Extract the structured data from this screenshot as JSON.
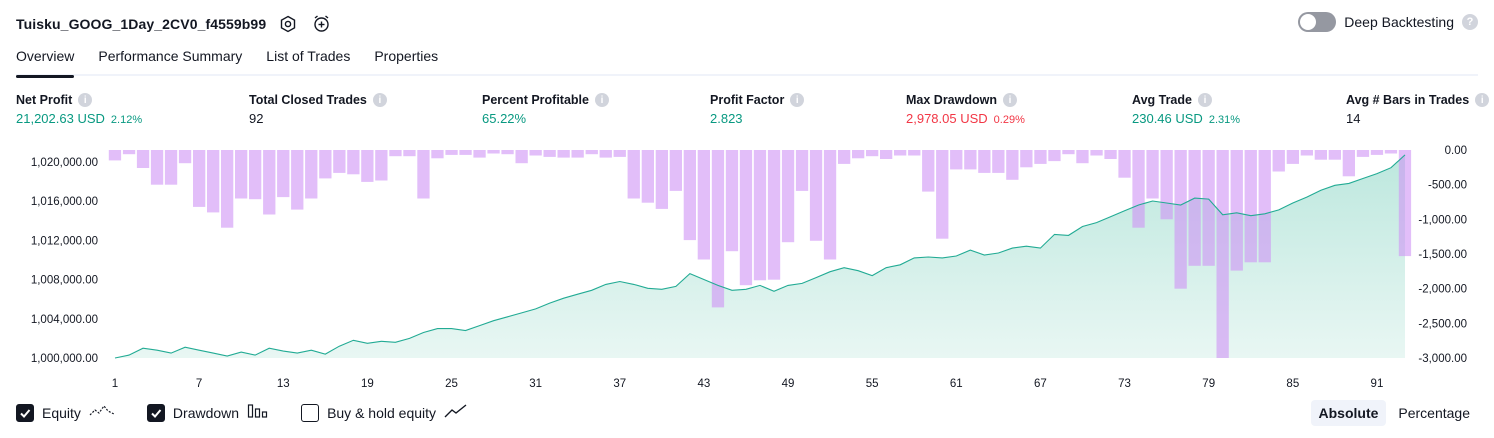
{
  "header": {
    "strategy_name": "Tuisku_GOOG_1Day_2CV0_f4559b99",
    "icons": [
      "settings-icon",
      "add-alert-icon"
    ],
    "deep_backtesting_label": "Deep Backtesting",
    "deep_backtesting_help": "?"
  },
  "tabs": [
    {
      "label": "Overview",
      "active": true
    },
    {
      "label": "Performance Summary",
      "active": false
    },
    {
      "label": "List of Trades",
      "active": false
    },
    {
      "label": "Properties",
      "active": false
    }
  ],
  "metrics": {
    "net_profit": {
      "label": "Net Profit",
      "value": "21,202.63 USD",
      "pct": "2.12%"
    },
    "total_closed_trades": {
      "label": "Total Closed Trades",
      "value": "92"
    },
    "percent_profitable": {
      "label": "Percent Profitable",
      "value": "65.22%"
    },
    "profit_factor": {
      "label": "Profit Factor",
      "value": "2.823"
    },
    "max_drawdown": {
      "label": "Max Drawdown",
      "value": "2,978.05 USD",
      "pct": "0.29%"
    },
    "avg_trade": {
      "label": "Avg Trade",
      "value": "230.46 USD",
      "pct": "2.31%"
    },
    "avg_bars": {
      "label": "Avg # Bars in Trades",
      "value": "14"
    },
    "info_glyph": "i"
  },
  "legend": {
    "equity": "Equity",
    "drawdown": "Drawdown",
    "buy_hold": "Buy & hold equity"
  },
  "mode": {
    "absolute": "Absolute",
    "percentage": "Percentage"
  },
  "colors": {
    "equity_line": "#22ab94",
    "equity_fill": "#cfeee6",
    "drawdown_bar": "#ce93f5",
    "positive": "#089981",
    "negative": "#f23645"
  },
  "chart_data": {
    "type": "area",
    "x_ticks": [
      "1",
      "7",
      "13",
      "19",
      "25",
      "31",
      "37",
      "43",
      "49",
      "55",
      "61",
      "67",
      "73",
      "79",
      "85",
      "91"
    ],
    "left_axis": {
      "ticks": [
        "1,000,000.00",
        "1,004,000.00",
        "1,008,000.00",
        "1,012,000.00",
        "1,016,000.00",
        "1,020,000.00"
      ],
      "ylim": [
        1000000,
        1021202
      ]
    },
    "right_axis": {
      "ticks": [
        "0.00",
        "-500.00",
        "-1,000.00",
        "-1,500.00",
        "-2,000.00",
        "-2,500.00",
        "-3,000.00"
      ],
      "ylim": [
        0,
        -3000
      ]
    },
    "series": [
      {
        "name": "Equity",
        "type": "area",
        "x": [
          1,
          2,
          3,
          4,
          5,
          6,
          7,
          8,
          9,
          10,
          11,
          12,
          13,
          14,
          15,
          16,
          17,
          18,
          19,
          20,
          21,
          22,
          23,
          24,
          25,
          26,
          27,
          28,
          29,
          30,
          31,
          32,
          33,
          34,
          35,
          36,
          37,
          38,
          39,
          40,
          41,
          42,
          43,
          44,
          45,
          46,
          47,
          48,
          49,
          50,
          51,
          52,
          53,
          54,
          55,
          56,
          57,
          58,
          59,
          60,
          61,
          62,
          63,
          64,
          65,
          66,
          67,
          68,
          69,
          70,
          71,
          72,
          73,
          74,
          75,
          76,
          77,
          78,
          79,
          80,
          81,
          82,
          83,
          84,
          85,
          86,
          87,
          88,
          89,
          90,
          91,
          92,
          93
        ],
        "values": [
          1000000,
          1000300,
          1001000,
          1000800,
          1000500,
          1001100,
          1000800,
          1000500,
          1000200,
          1000600,
          1000300,
          1001000,
          1000700,
          1000500,
          1000800,
          1000400,
          1001200,
          1001800,
          1001500,
          1001700,
          1001600,
          1002000,
          1002600,
          1003000,
          1003000,
          1002800,
          1003300,
          1003800,
          1004200,
          1004600,
          1005000,
          1005600,
          1006100,
          1006500,
          1006900,
          1007500,
          1007800,
          1007500,
          1007100,
          1007000,
          1007300,
          1008600,
          1008000,
          1007400,
          1006900,
          1007000,
          1007400,
          1006800,
          1007400,
          1007600,
          1008200,
          1008800,
          1009200,
          1008900,
          1008400,
          1009200,
          1009500,
          1010200,
          1010300,
          1010200,
          1010400,
          1011000,
          1010500,
          1010700,
          1011200,
          1011400,
          1011200,
          1012600,
          1012500,
          1013400,
          1013800,
          1014400,
          1015000,
          1015600,
          1016000,
          1015800,
          1015600,
          1016300,
          1016200,
          1014600,
          1014800,
          1014500,
          1014700,
          1015100,
          1015800,
          1016400,
          1017100,
          1017600,
          1017800,
          1018300,
          1018800,
          1019400,
          1020700
        ]
      },
      {
        "name": "Drawdown",
        "type": "bar",
        "x": [
          1,
          2,
          3,
          4,
          5,
          6,
          7,
          8,
          9,
          10,
          11,
          12,
          13,
          14,
          15,
          16,
          17,
          18,
          19,
          20,
          21,
          22,
          23,
          24,
          25,
          26,
          27,
          28,
          29,
          30,
          31,
          32,
          33,
          34,
          35,
          36,
          37,
          38,
          39,
          40,
          41,
          42,
          43,
          44,
          45,
          46,
          47,
          48,
          49,
          50,
          51,
          52,
          53,
          54,
          55,
          56,
          57,
          58,
          59,
          60,
          61,
          62,
          63,
          64,
          65,
          66,
          67,
          68,
          69,
          70,
          71,
          72,
          73,
          74,
          75,
          76,
          77,
          78,
          79,
          80,
          81,
          82,
          83,
          84,
          85,
          86,
          87,
          88,
          89,
          90,
          91,
          92,
          93
        ],
        "values": [
          -150,
          -60,
          -260,
          -500,
          -500,
          -190,
          -820,
          -900,
          -1120,
          -700,
          -710,
          -930,
          -680,
          -860,
          -700,
          -410,
          -330,
          -350,
          -460,
          -440,
          -90,
          -90,
          -700,
          -120,
          -70,
          -70,
          -110,
          -50,
          -60,
          -190,
          -80,
          -100,
          -110,
          -110,
          -60,
          -110,
          -100,
          -700,
          -760,
          -850,
          -590,
          -1300,
          -1580,
          -2270,
          -1460,
          -1950,
          -1880,
          -1870,
          -1330,
          -590,
          -1310,
          -1580,
          -200,
          -120,
          -90,
          -130,
          -80,
          -80,
          -600,
          -1280,
          -280,
          -280,
          -330,
          -330,
          -430,
          -250,
          -200,
          -160,
          -60,
          -190,
          -80,
          -130,
          -400,
          -1120,
          -700,
          -1000,
          -2000,
          -1670,
          -1670,
          -3000,
          -1740,
          -1620,
          -1620,
          -310,
          -200,
          -80,
          -140,
          -140,
          -380,
          -100,
          -70,
          -50,
          -1530
        ]
      }
    ]
  }
}
